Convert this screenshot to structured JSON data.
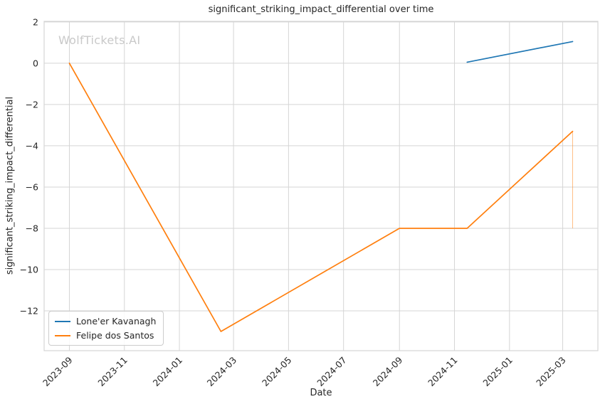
{
  "chart_data": {
    "type": "line",
    "title": "significant_striking_impact_differential over time",
    "xlabel": "Date",
    "ylabel": "significant_striking_impact_differential",
    "watermark": "WolfTickets.AI",
    "legend_position": "lower left",
    "grid": true,
    "background_color": "#ffffff",
    "grid_color": "#d5d5d5",
    "text_color": "#262626",
    "watermark_color": "#c9c9c9",
    "xlim": [
      "2023-08-04",
      "2025-04-09"
    ],
    "ylim": [
      -13.93,
      2.03
    ],
    "x_ticks": [
      {
        "label": "2023-09",
        "date": "2023-09-01"
      },
      {
        "label": "2023-11",
        "date": "2023-11-01"
      },
      {
        "label": "2024-01",
        "date": "2024-01-01"
      },
      {
        "label": "2024-03",
        "date": "2024-03-01"
      },
      {
        "label": "2024-05",
        "date": "2024-05-01"
      },
      {
        "label": "2024-07",
        "date": "2024-07-01"
      },
      {
        "label": "2024-09",
        "date": "2024-09-01"
      },
      {
        "label": "2024-11",
        "date": "2024-11-01"
      },
      {
        "label": "2025-01",
        "date": "2025-01-01"
      },
      {
        "label": "2025-03",
        "date": "2025-03-01"
      }
    ],
    "y_ticks": [
      {
        "label": "2",
        "value": 2
      },
      {
        "label": "0",
        "value": 0
      },
      {
        "label": "−2",
        "value": -2
      },
      {
        "label": "−4",
        "value": -4
      },
      {
        "label": "−6",
        "value": -6
      },
      {
        "label": "−8",
        "value": -8
      },
      {
        "label": "−10",
        "value": -10
      },
      {
        "label": "−12",
        "value": -12
      }
    ],
    "series": [
      {
        "name": "Lone'er Kavanagh",
        "color": "#1f77b4",
        "points": [
          [
            "2024-11-15",
            0.05
          ],
          [
            "2025-03-12",
            1.05
          ]
        ]
      },
      {
        "name": "Felipe dos Santos",
        "color": "#ff7f0e",
        "points": [
          [
            "2023-09-01",
            0.0
          ],
          [
            "2024-02-16",
            -13.0
          ],
          [
            "2024-09-01",
            -8.0
          ],
          [
            "2024-11-15",
            -8.0
          ],
          [
            "2025-03-12",
            -3.3
          ]
        ]
      }
    ],
    "annotations": [
      {
        "type": "vertical-segment",
        "date": "2025-03-12",
        "from": -3.3,
        "to": -8.0,
        "color": "#ff7f0e",
        "opacity": 0.5,
        "width": 1
      }
    ]
  }
}
